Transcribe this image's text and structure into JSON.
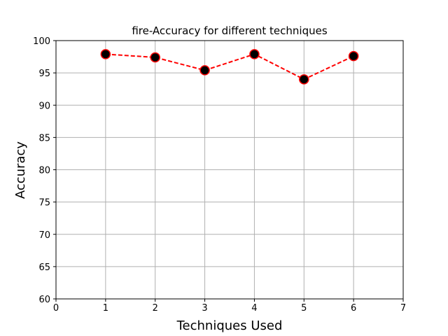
{
  "chart_data": {
    "type": "line",
    "title": "fire-Accuracy for different techniques",
    "xlabel": "Techniques Used",
    "ylabel": "Accuracy",
    "xlim": [
      0,
      7
    ],
    "ylim": [
      60,
      100
    ],
    "xticks": [
      0,
      1,
      2,
      3,
      4,
      5,
      6,
      7
    ],
    "yticks": [
      60,
      65,
      70,
      75,
      80,
      85,
      90,
      95,
      100
    ],
    "grid": true,
    "series": [
      {
        "name": "accuracy",
        "x": [
          1,
          2,
          3,
          4,
          5,
          6
        ],
        "values": [
          97.9,
          97.4,
          95.4,
          97.9,
          94.0,
          97.6
        ],
        "line_color": "#ff0000",
        "line_style": "dashed",
        "marker_fill": "#000000",
        "marker_edge": "#ff0000"
      }
    ]
  }
}
